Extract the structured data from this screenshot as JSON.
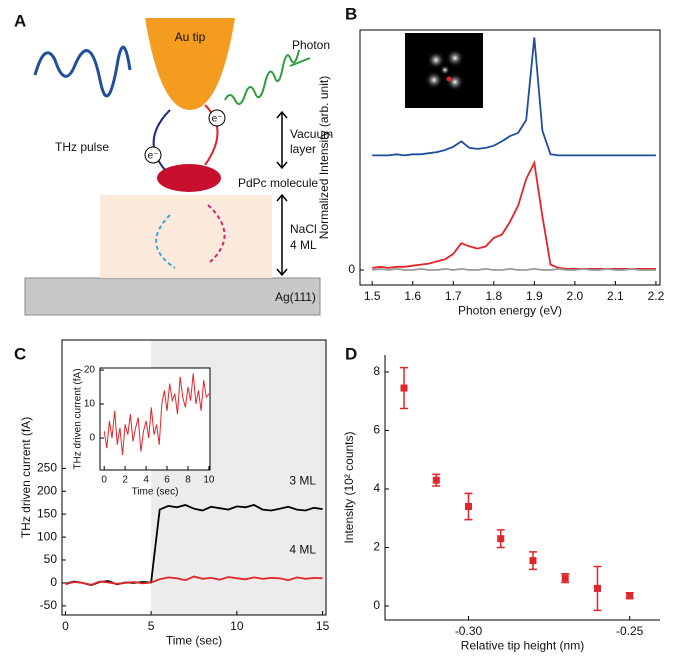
{
  "diagram": {
    "panel": "A",
    "tip": "Au tip",
    "photon": "Photon",
    "pulse": "THz pulse",
    "vacuum": [
      "Vacuum",
      "layer"
    ],
    "molecule": "PdPc molecule",
    "nacl": [
      "NaCl",
      "4 ML"
    ],
    "substrate": "Ag(111)",
    "electron": "e⁻"
  },
  "chart_data": [
    {
      "type": "line",
      "panel": "B",
      "xlabel": "Photon energy (eV)",
      "ylabel": "Normalized Intensity (arb. unit)",
      "xlim": [
        1.47,
        2.21
      ],
      "ylim": [
        -0.14,
        2.24
      ],
      "xticks": [
        1.5,
        1.6,
        1.7,
        1.8,
        1.9,
        {
          "value": 2,
          "label": "2.0"
        },
        2.1,
        2.2
      ],
      "yticks": [
        0
      ],
      "x": [
        1.5,
        1.52,
        1.54,
        1.56,
        1.58,
        1.6,
        1.62,
        1.64,
        1.66,
        1.68,
        1.7,
        1.72,
        1.74,
        1.76,
        1.78,
        1.8,
        1.82,
        1.84,
        1.86,
        1.88,
        1.9,
        1.92,
        1.94,
        1.96,
        1.98,
        2.0,
        2.02,
        2.04,
        2.06,
        2.08,
        2.1,
        2.12,
        2.14,
        2.16,
        2.18,
        2.2
      ],
      "series": [
        {
          "name": "blue",
          "color": "#1f4e9c",
          "values": [
            1.07,
            1.07,
            1.07,
            1.08,
            1.07,
            1.08,
            1.08,
            1.09,
            1.1,
            1.12,
            1.15,
            1.2,
            1.14,
            1.13,
            1.14,
            1.16,
            1.2,
            1.25,
            1.28,
            1.4,
            2.17,
            1.3,
            1.08,
            1.07,
            1.07,
            1.07,
            1.07,
            1.07,
            1.07,
            1.07,
            1.07,
            1.07,
            1.07,
            1.07,
            1.07,
            1.07
          ]
        },
        {
          "name": "red",
          "color": "#e0262b",
          "values": [
            0.02,
            0.03,
            0.02,
            0.03,
            0.03,
            0.04,
            0.05,
            0.06,
            0.08,
            0.1,
            0.15,
            0.25,
            0.22,
            0.2,
            0.22,
            0.3,
            0.33,
            0.45,
            0.6,
            0.85,
            1.0,
            0.5,
            0.05,
            0.02,
            0.01,
            0.01,
            0.01,
            0.01,
            0.01,
            0.01,
            0.01,
            0.01,
            0.01,
            0.01,
            0.01,
            0.01
          ]
        },
        {
          "name": "grey",
          "color": "#999999",
          "values": [
            0,
            0.01,
            0,
            0.01,
            0,
            0,
            0.01,
            0,
            0,
            0.01,
            0,
            0.01,
            0,
            0,
            0.01,
            0,
            0,
            0.01,
            0,
            0,
            0.01,
            0,
            0,
            0.01,
            0,
            0,
            0.01,
            0,
            0,
            0.01,
            0,
            0,
            0.01,
            0,
            0,
            0
          ]
        }
      ]
    },
    {
      "type": "line",
      "panel": "C",
      "xlabel": "Time (sec)",
      "ylabel": "THz driven current (fA)",
      "xlim": [
        -0.2,
        15.2
      ],
      "ylim": [
        -70,
        530
      ],
      "xticks": [
        0,
        5,
        10,
        15
      ],
      "yticks": [
        -50,
        0,
        50,
        100,
        150,
        200,
        250
      ],
      "shade_from": 5,
      "annotations": [
        "3 ML",
        "4 ML"
      ],
      "x": [
        0,
        0.5,
        1,
        1.5,
        2,
        2.5,
        3,
        3.5,
        4,
        4.5,
        5,
        5.5,
        6,
        6.5,
        7,
        7.5,
        8,
        8.5,
        9,
        9.5,
        10,
        10.5,
        11,
        11.5,
        12,
        12.5,
        13,
        13.5,
        14,
        14.5,
        15
      ],
      "series": [
        {
          "name": "3 ML",
          "color": "#000000",
          "values": [
            -2,
            3,
            0,
            -5,
            2,
            4,
            -3,
            1,
            0,
            2,
            1,
            160,
            168,
            165,
            170,
            162,
            158,
            166,
            163,
            160,
            167,
            165,
            170,
            160,
            158,
            162,
            166,
            160,
            158,
            164,
            161
          ]
        },
        {
          "name": "4 ML",
          "color": "#e0262b",
          "values": [
            -3,
            2,
            0,
            -4,
            3,
            1,
            -2,
            0,
            2,
            -1,
            1,
            8,
            12,
            10,
            6,
            14,
            9,
            11,
            7,
            13,
            10,
            8,
            12,
            9,
            11,
            10,
            6,
            12,
            9,
            11,
            10
          ]
        }
      ]
    },
    {
      "type": "line",
      "panel": "C-inset",
      "xlabel": "Time (sec)",
      "ylabel": "THz driven current (fA)",
      "xlim": [
        -0.4,
        10.1
      ],
      "ylim": [
        -9.4,
        20.6
      ],
      "xticks": [
        0,
        2,
        4,
        6,
        8,
        10
      ],
      "yticks": [
        0,
        10,
        20
      ],
      "x": [
        0,
        0.25,
        0.5,
        0.75,
        1,
        1.25,
        1.5,
        1.75,
        2,
        2.25,
        2.5,
        2.75,
        3,
        3.25,
        3.5,
        3.75,
        4,
        4.25,
        4.5,
        4.75,
        5,
        5.25,
        5.5,
        5.75,
        6,
        6.25,
        6.5,
        6.75,
        7,
        7.25,
        7.5,
        7.75,
        8,
        8.25,
        8.5,
        8.75,
        9,
        9.25,
        9.5,
        9.75,
        10
      ],
      "series": [
        {
          "name": "inset",
          "color": "#e0262b",
          "values": [
            2,
            -3,
            5,
            0,
            8,
            -2,
            3,
            -5,
            4,
            1,
            7,
            -1,
            3,
            6,
            -4,
            2,
            5,
            0,
            9,
            1,
            4,
            -2,
            10,
            14,
            8,
            16,
            11,
            13,
            7,
            18,
            12,
            9,
            15,
            11,
            19,
            10,
            14,
            8,
            17,
            12,
            13
          ]
        }
      ]
    },
    {
      "type": "scatter",
      "panel": "D",
      "xlabel": "Relative tip height (nm)",
      "ylabel": "Intensity (10² counts)",
      "color": "#e0262b",
      "xlim": [
        -0.3259,
        -0.2406
      ],
      "ylim": [
        -0.48,
        8.58
      ],
      "xticks": [
        {
          "value": -0.3,
          "label": "-0.30"
        },
        {
          "value": -0.25,
          "label": "-0.25"
        }
      ],
      "yticks": [
        0,
        2,
        4,
        6,
        8
      ],
      "x": [
        -0.32,
        -0.31,
        -0.3,
        -0.29,
        -0.28,
        -0.27,
        -0.26,
        -0.25
      ],
      "values": [
        7.45,
        4.3,
        3.4,
        2.3,
        1.55,
        0.95,
        0.6,
        0.35
      ],
      "errors": [
        0.7,
        0.2,
        0.45,
        0.3,
        0.3,
        0.15,
        0.75,
        0.1
      ]
    }
  ]
}
